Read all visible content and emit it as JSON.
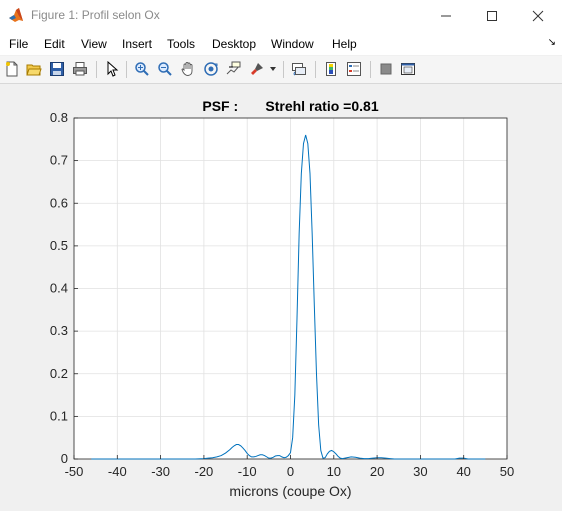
{
  "window": {
    "title": "Figure 1: Profil selon Ox",
    "minimize_icon": "minimize-icon",
    "maximize_icon": "maximize-icon",
    "close_icon": "close-icon"
  },
  "menubar": {
    "items": [
      "File",
      "Edit",
      "View",
      "Insert",
      "Tools",
      "Desktop",
      "Window",
      "Help"
    ],
    "overflow_icon": "dock-arrow-icon"
  },
  "toolbar": {
    "icons": [
      "new-figure-icon",
      "open-file-icon",
      "save-icon",
      "print-icon",
      "pointer-icon",
      "zoom-in-icon",
      "zoom-out-icon",
      "pan-icon",
      "rotate-3d-icon",
      "data-cursor-icon",
      "brush-icon",
      "link-plot-icon",
      "insert-colorbar-icon",
      "insert-legend-icon",
      "hide-plot-tools-icon",
      "show-plot-tools-icon"
    ]
  },
  "colors": {
    "line": "#0072bd",
    "grid": "#e1e1e1",
    "axes_bg": "#ffffff",
    "figure_bg": "#f0f0f0"
  },
  "chart_data": {
    "type": "line",
    "title": "PSF :       Strehl ratio =0.81",
    "xlabel": "microns (coupe Ox)",
    "ylabel": "",
    "xlim": [
      -50,
      50
    ],
    "ylim": [
      0,
      0.8
    ],
    "xticks": [
      -50,
      -40,
      -30,
      -20,
      -10,
      0,
      10,
      20,
      30,
      40,
      50
    ],
    "yticks": [
      0,
      0.1,
      0.2,
      0.3,
      0.4,
      0.5,
      0.6,
      0.7,
      0.8
    ],
    "xtick_labels": [
      "-50",
      "-40",
      "-30",
      "-20",
      "-10",
      "0",
      "10",
      "20",
      "30",
      "40",
      "50"
    ],
    "ytick_labels": [
      "0",
      "0.1",
      "0.2",
      "0.3",
      "0.4",
      "0.5",
      "0.6",
      "0.7",
      "0.8"
    ],
    "grid": true,
    "series": [
      {
        "x": [
          -46,
          -40,
          -30,
          -25,
          -22,
          -20,
          -19,
          -18,
          -17,
          -16,
          -15,
          -14,
          -13.5,
          -13,
          -12.5,
          -12,
          -11.5,
          -11,
          -10.5,
          -10,
          -9.5,
          -9,
          -8.5,
          -8,
          -7.5,
          -7,
          -6.5,
          -6,
          -5.5,
          -5,
          -4.5,
          -4,
          -3.5,
          -3,
          -2.5,
          -2,
          -1.5,
          -1,
          -0.5,
          0,
          0.5,
          1,
          1.5,
          2,
          2.5,
          3,
          3.5,
          4,
          4.5,
          5,
          5.5,
          6,
          6.5,
          7,
          7.5,
          8,
          8.5,
          9,
          9.5,
          10,
          10.5,
          11,
          11.5,
          12,
          13,
          14,
          15,
          16,
          17,
          18,
          19,
          20,
          21,
          22,
          23,
          24,
          25,
          26,
          30,
          35,
          38,
          39,
          40,
          41,
          45
        ],
        "y": [
          0.0,
          0.0,
          0.0,
          0.0,
          0.0,
          0.001,
          0.002,
          0.003,
          0.005,
          0.008,
          0.014,
          0.022,
          0.027,
          0.031,
          0.034,
          0.034,
          0.031,
          0.026,
          0.02,
          0.013,
          0.008,
          0.005,
          0.005,
          0.006,
          0.008,
          0.01,
          0.01,
          0.008,
          0.005,
          0.002,
          0.002,
          0.004,
          0.007,
          0.008,
          0.008,
          0.005,
          0.003,
          0.004,
          0.008,
          0.015,
          0.05,
          0.15,
          0.33,
          0.53,
          0.67,
          0.74,
          0.76,
          0.74,
          0.67,
          0.53,
          0.36,
          0.2,
          0.08,
          0.02,
          0.002,
          0.003,
          0.012,
          0.018,
          0.02,
          0.017,
          0.012,
          0.006,
          0.002,
          0.001,
          0.003,
          0.005,
          0.004,
          0.002,
          0.001,
          0.001,
          0.002,
          0.003,
          0.003,
          0.002,
          0.001,
          0.0,
          0.0,
          0.0,
          0.0,
          0.0,
          0.0,
          0.002,
          0.002,
          0.0,
          0.0
        ]
      }
    ]
  }
}
